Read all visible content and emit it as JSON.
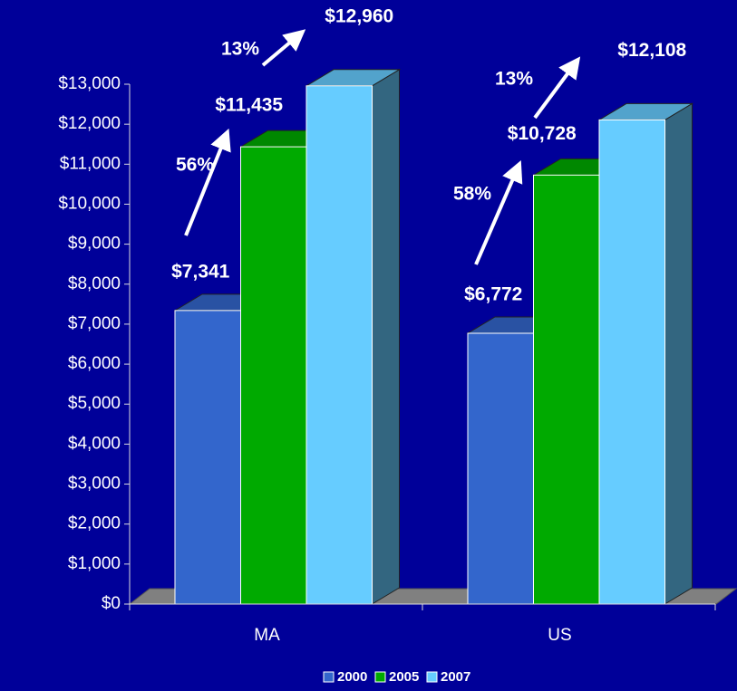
{
  "chart_data": {
    "type": "bar3d",
    "categories": [
      "MA",
      "US"
    ],
    "series": [
      {
        "name": "2000",
        "color": "#3366cc",
        "values": [
          7341,
          6772
        ],
        "value_labels": [
          "$7,341",
          "$6,772"
        ]
      },
      {
        "name": "2005",
        "color": "#00aa00",
        "values": [
          11435,
          10728
        ],
        "value_labels": [
          "$11,435",
          "$10,728"
        ]
      },
      {
        "name": "2007",
        "color": "#66ccff",
        "values": [
          12960,
          12108
        ],
        "value_labels": [
          "$12,960",
          "$12,108"
        ]
      }
    ],
    "annotations": [
      "56%",
      "13%",
      "58%",
      "13%"
    ],
    "ylim": [
      0,
      13000
    ],
    "yticks": [
      {
        "value": 0,
        "label": "$0"
      },
      {
        "value": 1000,
        "label": "$1,000"
      },
      {
        "value": 2000,
        "label": "$2,000"
      },
      {
        "value": 3000,
        "label": "$3,000"
      },
      {
        "value": 4000,
        "label": "$4,000"
      },
      {
        "value": 5000,
        "label": "$5,000"
      },
      {
        "value": 6000,
        "label": "$6,000"
      },
      {
        "value": 7000,
        "label": "$7,000"
      },
      {
        "value": 8000,
        "label": "$8,000"
      },
      {
        "value": 9000,
        "label": "$9,000"
      },
      {
        "value": 10000,
        "label": "$10,000"
      },
      {
        "value": 11000,
        "label": "$11,000"
      },
      {
        "value": 12000,
        "label": "$12,000"
      },
      {
        "value": 13000,
        "label": "$13,000"
      }
    ],
    "legend": "bottom"
  }
}
